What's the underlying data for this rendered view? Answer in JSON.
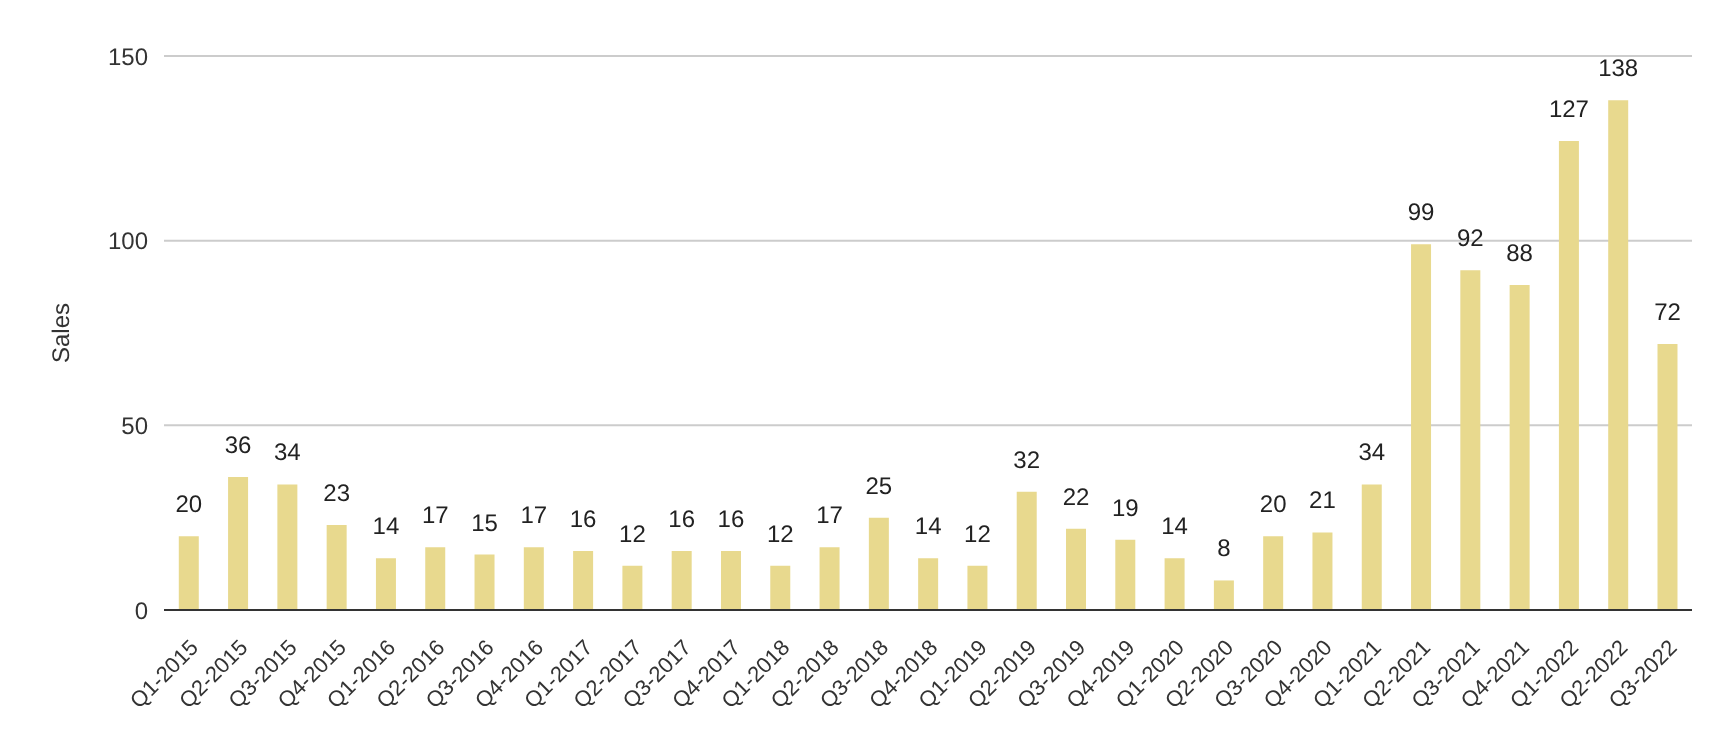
{
  "chart_data": {
    "type": "bar",
    "ylabel": "Sales",
    "categories": [
      "Q1-2015",
      "Q2-2015",
      "Q3-2015",
      "Q4-2015",
      "Q1-2016",
      "Q2-2016",
      "Q3-2016",
      "Q4-2016",
      "Q1-2017",
      "Q2-2017",
      "Q3-2017",
      "Q4-2017",
      "Q1-2018",
      "Q2-2018",
      "Q3-2018",
      "Q4-2018",
      "Q1-2019",
      "Q2-2019",
      "Q3-2019",
      "Q4-2019",
      "Q1-2020",
      "Q2-2020",
      "Q3-2020",
      "Q4-2020",
      "Q1-2021",
      "Q2-2021",
      "Q3-2021",
      "Q4-2021",
      "Q1-2022",
      "Q2-2022",
      "Q3-2022"
    ],
    "values": [
      20,
      36,
      34,
      23,
      14,
      17,
      15,
      17,
      16,
      12,
      16,
      16,
      12,
      17,
      25,
      14,
      12,
      32,
      22,
      19,
      14,
      8,
      20,
      21,
      34,
      99,
      92,
      88,
      127,
      138,
      72
    ],
    "color": "#e8d98e",
    "ylim": [
      0,
      150
    ],
    "yticks": [
      0,
      50,
      100,
      150
    ],
    "grid": "y",
    "data_labels": true
  }
}
